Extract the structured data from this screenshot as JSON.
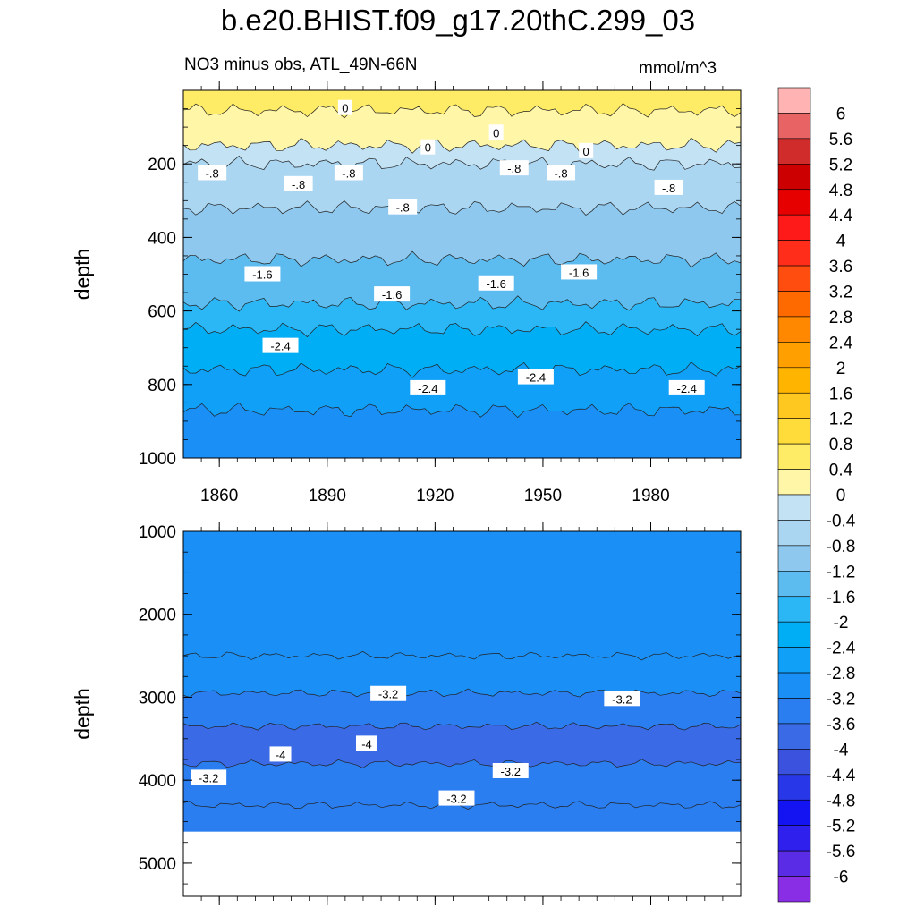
{
  "title": "b.e20.BHIST.f09_g17.20thC.299_03",
  "subtitle_left": "NO3 minus obs, ATL_49N-66N",
  "subtitle_right": "mmol/m^3",
  "chart_data": [
    {
      "type": "heatmap",
      "panel": "upper",
      "xlabel": "",
      "ylabel": "depth",
      "x_range": [
        1850,
        2005
      ],
      "y_range": [
        0,
        1000
      ],
      "y_inverted": true,
      "x_ticks": [
        1860,
        1890,
        1920,
        1950,
        1980
      ],
      "y_ticks": [
        200,
        400,
        600,
        800,
        1000
      ],
      "bands": [
        {
          "top": 0,
          "bottom": 55,
          "value": 0.4
        },
        {
          "top": 55,
          "bottom": 150,
          "value": 0.2
        },
        {
          "top": 150,
          "bottom": 200,
          "value": -0.4
        },
        {
          "top": 200,
          "bottom": 320,
          "value": -0.8
        },
        {
          "top": 320,
          "bottom": 460,
          "value": -1.2
        },
        {
          "top": 460,
          "bottom": 580,
          "value": -1.6
        },
        {
          "top": 580,
          "bottom": 650,
          "value": -2.0
        },
        {
          "top": 650,
          "bottom": 760,
          "value": -2.4
        },
        {
          "top": 760,
          "bottom": 870,
          "value": -2.8
        },
        {
          "top": 870,
          "bottom": 1000,
          "value": -3.0
        }
      ],
      "contour_labels": [
        {
          "text": "0",
          "x": 1895,
          "y": 48
        },
        {
          "text": "0",
          "x": 1918,
          "y": 155
        },
        {
          "text": "0",
          "x": 1937,
          "y": 115
        },
        {
          "text": "0",
          "x": 1962,
          "y": 165
        },
        {
          "text": "-.8",
          "x": 1858,
          "y": 225
        },
        {
          "text": "-.8",
          "x": 1882,
          "y": 255
        },
        {
          "text": "-.8",
          "x": 1896,
          "y": 225
        },
        {
          "text": "-.8",
          "x": 1911,
          "y": 318
        },
        {
          "text": "-.8",
          "x": 1942,
          "y": 212
        },
        {
          "text": "-.8",
          "x": 1955,
          "y": 225
        },
        {
          "text": "-.8",
          "x": 1985,
          "y": 265
        },
        {
          "text": "-1.6",
          "x": 1872,
          "y": 500
        },
        {
          "text": "-1.6",
          "x": 1908,
          "y": 555
        },
        {
          "text": "-1.6",
          "x": 1937,
          "y": 525
        },
        {
          "text": "-1.6",
          "x": 1960,
          "y": 495
        },
        {
          "text": "-2.4",
          "x": 1877,
          "y": 695
        },
        {
          "text": "-2.4",
          "x": 1918,
          "y": 810
        },
        {
          "text": "-2.4",
          "x": 1948,
          "y": 780
        },
        {
          "text": "-2.4",
          "x": 1990,
          "y": 810
        }
      ]
    },
    {
      "type": "heatmap",
      "panel": "lower",
      "xlabel": "",
      "ylabel": "depth",
      "x_range": [
        1850,
        2005
      ],
      "y_range": [
        1000,
        5400
      ],
      "y_inverted": true,
      "x_ticks": [
        1860,
        1890,
        1920,
        1950,
        1980
      ],
      "y_ticks": [
        1000,
        2000,
        3000,
        4000,
        5000
      ],
      "data_bottom": 4620,
      "bands": [
        {
          "top": 1000,
          "bottom": 2500,
          "value": -3.0
        },
        {
          "top": 2500,
          "bottom": 2950,
          "value": -3.2
        },
        {
          "top": 2950,
          "bottom": 3350,
          "value": -3.4
        },
        {
          "top": 3350,
          "bottom": 3800,
          "value": -3.8
        },
        {
          "top": 3800,
          "bottom": 4300,
          "value": -3.4
        },
        {
          "top": 4300,
          "bottom": 4620,
          "value": -3.6
        }
      ],
      "contour_labels": [
        {
          "text": "-3.2",
          "x": 1907,
          "y": 2960
        },
        {
          "text": "-3.2",
          "x": 1972,
          "y": 3020
        },
        {
          "text": "-4",
          "x": 1877,
          "y": 3690
        },
        {
          "text": "-4",
          "x": 1901,
          "y": 3560
        },
        {
          "text": "-3.2",
          "x": 1857,
          "y": 3970
        },
        {
          "text": "-3.2",
          "x": 1941,
          "y": 3890
        },
        {
          "text": "-3.2",
          "x": 1926,
          "y": 4220
        }
      ]
    }
  ],
  "colorbar": {
    "levels": [
      "6",
      "5.6",
      "5.2",
      "4.8",
      "4.4",
      "4",
      "3.6",
      "3.2",
      "2.8",
      "2.4",
      "2",
      "1.6",
      "1.2",
      "0.8",
      "0.4",
      "0",
      "-0.4",
      "-0.8",
      "-1.2",
      "-1.6",
      "-2",
      "-2.4",
      "-2.8",
      "-3.2",
      "-3.6",
      "-4",
      "-4.4",
      "-4.8",
      "-5.2",
      "-5.6",
      "-6"
    ],
    "colors": [
      "#ffb3b3",
      "#e86464",
      "#d02c2c",
      "#cc0000",
      "#e60000",
      "#ff1a1a",
      "#ff2d1a",
      "#ff4d10",
      "#ff6a00",
      "#ff8800",
      "#ffa000",
      "#ffb400",
      "#ffc820",
      "#ffdc3a",
      "#ffec66",
      "#fff6a8",
      "#c3e2f4",
      "#aad6f2",
      "#8ec8ee",
      "#5cbcf0",
      "#2bb6f5",
      "#00aef6",
      "#10a0f8",
      "#1a90f6",
      "#2a7ef0",
      "#3a6ae6",
      "#3a52de",
      "#2838e8",
      "#1414f2",
      "#3020ee",
      "#5a2ce6",
      "#8a2ee6"
    ]
  }
}
